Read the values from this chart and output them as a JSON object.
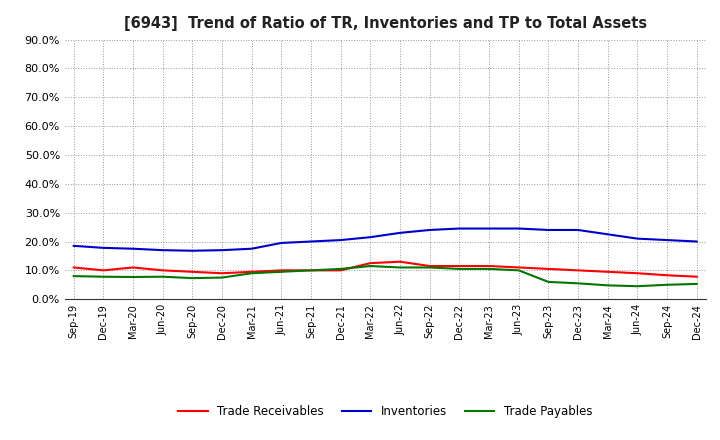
{
  "title": "[6943]  Trend of Ratio of TR, Inventories and TP to Total Assets",
  "x_labels": [
    "Sep-19",
    "Dec-19",
    "Mar-20",
    "Jun-20",
    "Sep-20",
    "Dec-20",
    "Mar-21",
    "Jun-21",
    "Sep-21",
    "Dec-21",
    "Mar-22",
    "Jun-22",
    "Sep-22",
    "Dec-22",
    "Mar-23",
    "Jun-23",
    "Sep-23",
    "Dec-23",
    "Mar-24",
    "Jun-24",
    "Sep-24",
    "Dec-24"
  ],
  "trade_receivables": [
    0.11,
    0.1,
    0.11,
    0.1,
    0.095,
    0.09,
    0.095,
    0.1,
    0.1,
    0.1,
    0.125,
    0.13,
    0.115,
    0.115,
    0.115,
    0.11,
    0.105,
    0.1,
    0.095,
    0.09,
    0.083,
    0.078
  ],
  "inventories": [
    0.185,
    0.178,
    0.175,
    0.17,
    0.168,
    0.17,
    0.175,
    0.195,
    0.2,
    0.205,
    0.215,
    0.23,
    0.24,
    0.245,
    0.245,
    0.245,
    0.24,
    0.24,
    0.225,
    0.21,
    0.205,
    0.2
  ],
  "trade_payables": [
    0.08,
    0.078,
    0.077,
    0.078,
    0.073,
    0.075,
    0.09,
    0.095,
    0.1,
    0.105,
    0.115,
    0.11,
    0.11,
    0.105,
    0.105,
    0.1,
    0.06,
    0.055,
    0.048,
    0.045,
    0.05,
    0.053
  ],
  "ylim": [
    0.0,
    0.9
  ],
  "yticks": [
    0.0,
    0.1,
    0.2,
    0.3,
    0.4,
    0.5,
    0.6,
    0.7,
    0.8,
    0.9
  ],
  "colors": {
    "trade_receivables": "#FF0000",
    "inventories": "#0000CC",
    "trade_payables": "#007700"
  },
  "legend_labels": [
    "Trade Receivables",
    "Inventories",
    "Trade Payables"
  ],
  "background_color": "#FFFFFF",
  "grid_color": "#999999"
}
